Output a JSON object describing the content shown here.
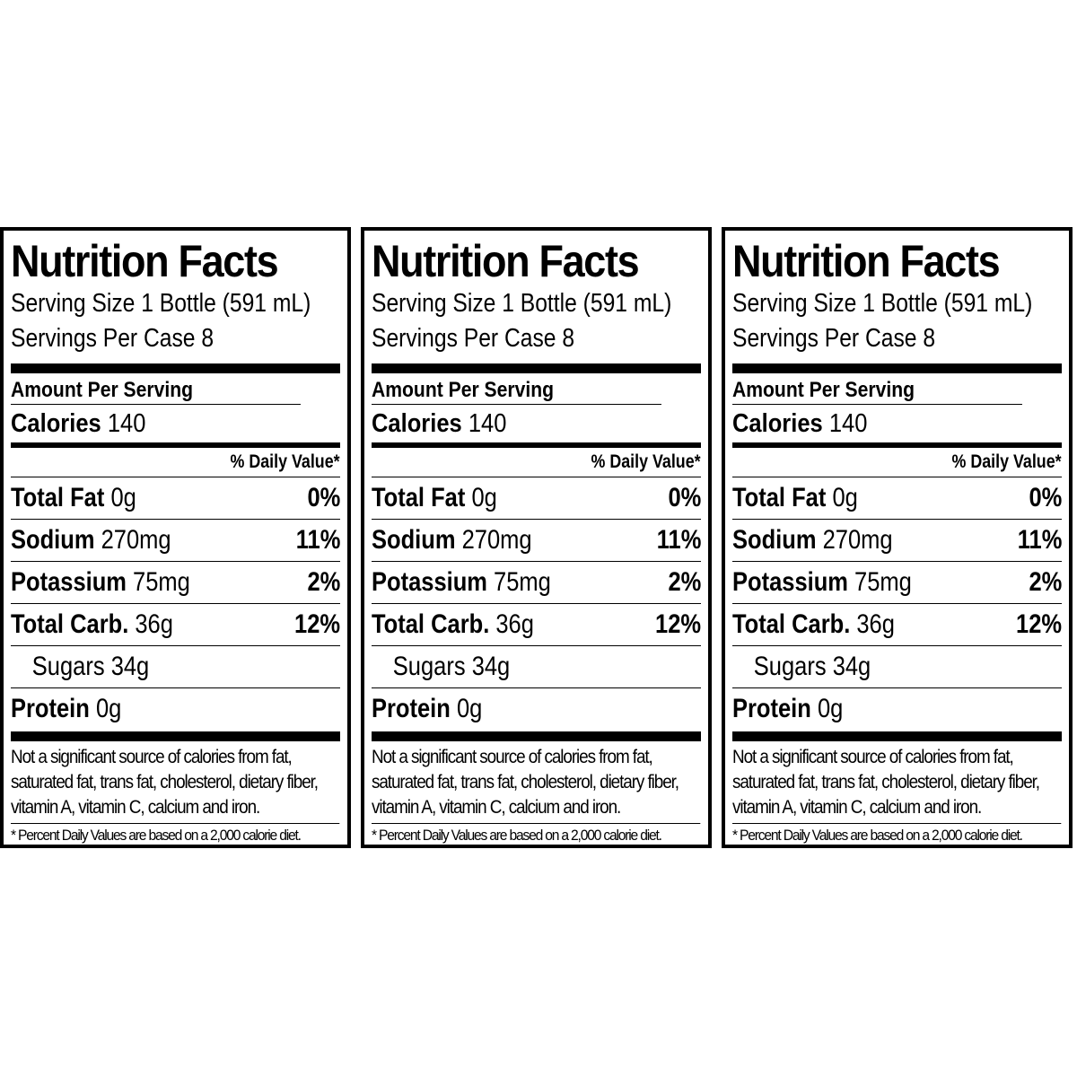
{
  "panels": [
    {
      "title": "Nutrition Facts",
      "serving_size": "Serving Size 1 Bottle (591 mL)",
      "servings_per": "Servings Per Case 8",
      "amount_per_serving": "Amount Per Serving",
      "calories_label": "Calories",
      "calories_value": "140",
      "daily_value_header": "% Daily Value*",
      "nutrients": [
        {
          "label": "Total Fat",
          "amount": "0g",
          "dv": "0%"
        },
        {
          "label": "Sodium",
          "amount": "270mg",
          "dv": "11%"
        },
        {
          "label": "Potassium",
          "amount": "75mg",
          "dv": "2%"
        },
        {
          "label": "Total Carb.",
          "amount": "36g",
          "dv": "12%"
        },
        {
          "label": "Sugars",
          "amount": "34g",
          "dv": ""
        },
        {
          "label": "Protein",
          "amount": "0g",
          "dv": ""
        }
      ],
      "note": "Not a significant source of calories from fat, saturated fat, trans fat, cholesterol, dietary fiber, vitamin A, vitamin C, calcium and iron.",
      "footnote": "* Percent Daily Values are based on a 2,000 calorie diet."
    },
    {
      "title": "Nutrition Facts",
      "serving_size": "Serving Size 1 Bottle (591 mL)",
      "servings_per": "Servings Per Case 8",
      "amount_per_serving": "Amount Per Serving",
      "calories_label": "Calories",
      "calories_value": "140",
      "daily_value_header": "% Daily Value*",
      "nutrients": [
        {
          "label": "Total Fat",
          "amount": "0g",
          "dv": "0%"
        },
        {
          "label": "Sodium",
          "amount": "270mg",
          "dv": "11%"
        },
        {
          "label": "Potassium",
          "amount": "75mg",
          "dv": "2%"
        },
        {
          "label": "Total Carb.",
          "amount": "36g",
          "dv": "12%"
        },
        {
          "label": "Sugars",
          "amount": "34g",
          "dv": ""
        },
        {
          "label": "Protein",
          "amount": "0g",
          "dv": ""
        }
      ],
      "note": "Not a significant source of calories from fat, saturated fat, trans fat, cholesterol, dietary fiber, vitamin A, vitamin C, calcium and iron.",
      "footnote": "* Percent Daily Values are based on a 2,000 calorie diet."
    },
    {
      "title": "Nutrition Facts",
      "serving_size": "Serving Size 1 Bottle (591 mL)",
      "servings_per": "Servings Per Case 8",
      "amount_per_serving": "Amount Per Serving",
      "calories_label": "Calories",
      "calories_value": "140",
      "daily_value_header": "% Daily Value*",
      "nutrients": [
        {
          "label": "Total Fat",
          "amount": "0g",
          "dv": "0%"
        },
        {
          "label": "Sodium",
          "amount": "270mg",
          "dv": "11%"
        },
        {
          "label": "Potassium",
          "amount": "75mg",
          "dv": "2%"
        },
        {
          "label": "Total Carb.",
          "amount": "36g",
          "dv": "12%"
        },
        {
          "label": "Sugars",
          "amount": "34g",
          "dv": ""
        },
        {
          "label": "Protein",
          "amount": "0g",
          "dv": ""
        }
      ],
      "note": "Not a significant source of calories from fat, saturated fat, trans fat, cholesterol, dietary fiber, vitamin A, vitamin C, calcium and iron.",
      "footnote": "* Percent Daily Values are based on a 2,000 calorie diet."
    }
  ]
}
